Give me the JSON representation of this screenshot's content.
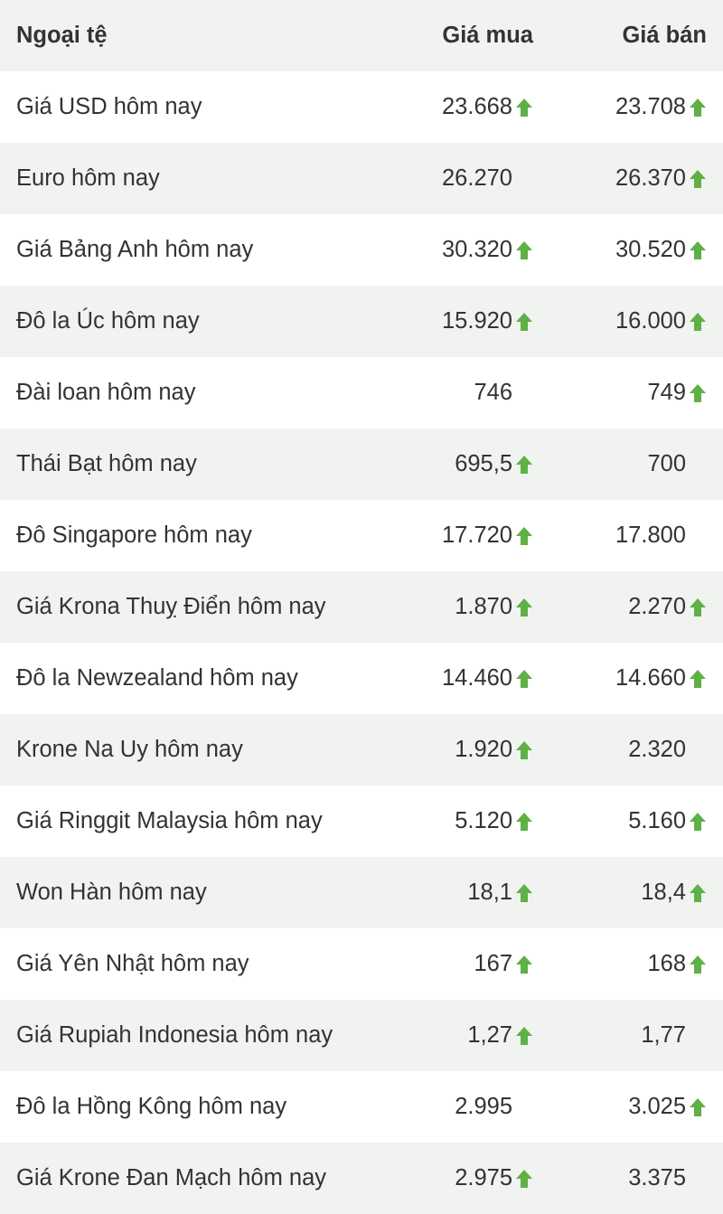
{
  "table": {
    "type": "table",
    "columns": {
      "name": "Ngoại tệ",
      "buy": "Giá mua",
      "sell": "Giá bán"
    },
    "arrow_color": "#5fb046",
    "row_alt_bg": "#f0f3f0",
    "row_bg": "#ffffff",
    "text_color": "#333333",
    "font_size": 25.5,
    "rows": [
      {
        "name": "Giá USD hôm nay",
        "buy": "23.668",
        "buy_up": true,
        "sell": "23.708",
        "sell_up": true
      },
      {
        "name": "Euro hôm nay",
        "buy": "26.270",
        "buy_up": false,
        "sell": "26.370",
        "sell_up": true
      },
      {
        "name": "Giá Bảng Anh hôm nay",
        "buy": "30.320",
        "buy_up": true,
        "sell": "30.520",
        "sell_up": true
      },
      {
        "name": "Đô la Úc hôm nay",
        "buy": "15.920",
        "buy_up": true,
        "sell": "16.000",
        "sell_up": true
      },
      {
        "name": "Đài loan hôm nay",
        "buy": "746",
        "buy_up": false,
        "sell": "749",
        "sell_up": true
      },
      {
        "name": "Thái Bạt hôm nay",
        "buy": "695,5",
        "buy_up": true,
        "sell": "700",
        "sell_up": false
      },
      {
        "name": "Đô Singapore hôm nay",
        "buy": "17.720",
        "buy_up": true,
        "sell": "17.800",
        "sell_up": false
      },
      {
        "name": "Giá Krona Thuỵ Điển hôm nay",
        "buy": "1.870",
        "buy_up": true,
        "sell": "2.270",
        "sell_up": true
      },
      {
        "name": "Đô la Newzealand hôm nay",
        "buy": "14.460",
        "buy_up": true,
        "sell": "14.660",
        "sell_up": true
      },
      {
        "name": "Krone Na Uy hôm nay",
        "buy": "1.920",
        "buy_up": true,
        "sell": "2.320",
        "sell_up": false
      },
      {
        "name": "Giá Ringgit Malaysia hôm nay",
        "buy": "5.120",
        "buy_up": true,
        "sell": "5.160",
        "sell_up": true
      },
      {
        "name": "Won Hàn hôm nay",
        "buy": "18,1",
        "buy_up": true,
        "sell": "18,4",
        "sell_up": true
      },
      {
        "name": "Giá Yên Nhật hôm nay",
        "buy": "167",
        "buy_up": true,
        "sell": "168",
        "sell_up": true
      },
      {
        "name": "Giá Rupiah Indonesia hôm nay",
        "buy": "1,27",
        "buy_up": true,
        "sell": "1,77",
        "sell_up": false
      },
      {
        "name": "Đô la Hồng Kông hôm nay",
        "buy": "2.995",
        "buy_up": false,
        "sell": "3.025",
        "sell_up": true
      },
      {
        "name": "Giá Krone Đan Mạch hôm nay",
        "buy": "2.975",
        "buy_up": true,
        "sell": "3.375",
        "sell_up": false
      }
    ]
  }
}
